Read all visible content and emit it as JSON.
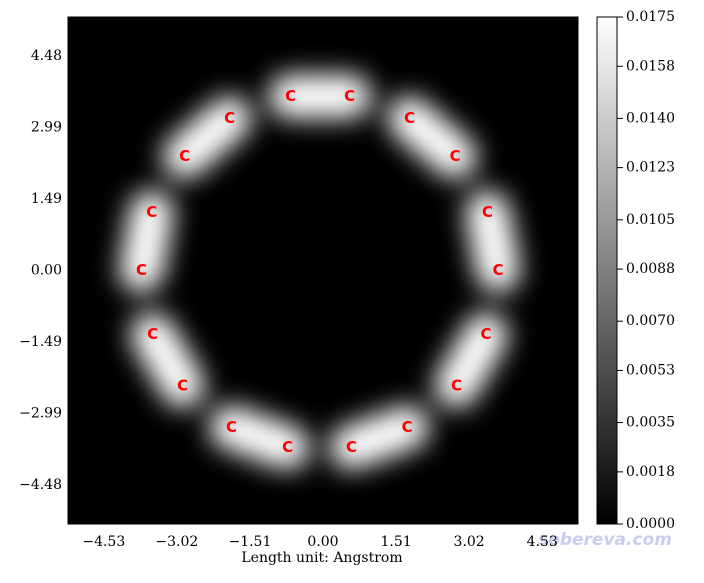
{
  "chart_data": {
    "type": "density-map",
    "xlabel": "Length unit: Angstrom",
    "xlim": [
      -5.27,
      5.27
    ],
    "ylim": [
      -5.3,
      5.3
    ],
    "xticks": [
      {
        "value": -4.53,
        "label": "−4.53"
      },
      {
        "value": -3.02,
        "label": "−3.02"
      },
      {
        "value": -1.51,
        "label": "−1.51"
      },
      {
        "value": 0,
        "label": "0.00"
      },
      {
        "value": 1.51,
        "label": "1.51"
      },
      {
        "value": 3.02,
        "label": "3.02"
      },
      {
        "value": 4.53,
        "label": "4.53"
      }
    ],
    "yticks": [
      {
        "value": -4.48,
        "label": "−4.48"
      },
      {
        "value": -2.99,
        "label": "−2.99"
      },
      {
        "value": -1.49,
        "label": "−1.49"
      },
      {
        "value": 0,
        "label": "0.00"
      },
      {
        "value": 1.49,
        "label": "1.49"
      },
      {
        "value": 2.99,
        "label": "2.99"
      },
      {
        "value": 4.48,
        "label": "4.48"
      }
    ],
    "colorbar_lim": [
      0,
      0.0175
    ],
    "colorbar_ticks": [
      {
        "value": 0,
        "label": "0.0000"
      },
      {
        "value": 0.0018,
        "label": "0.0018"
      },
      {
        "value": 0.0035,
        "label": "0.0035"
      },
      {
        "value": 0.0053,
        "label": "0.0053"
      },
      {
        "value": 0.007,
        "label": "0.0070"
      },
      {
        "value": 0.0088,
        "label": "0.0088"
      },
      {
        "value": 0.0105,
        "label": "0.0105"
      },
      {
        "value": 0.0123,
        "label": "0.0123"
      },
      {
        "value": 0.014,
        "label": "0.0140"
      },
      {
        "value": 0.0158,
        "label": "0.0158"
      },
      {
        "value": 0.0175,
        "label": "0.0175"
      }
    ],
    "atoms": [
      {
        "label": "C",
        "x": -0.67,
        "y": 3.64
      },
      {
        "label": "C",
        "x": 0.55,
        "y": 3.64
      },
      {
        "label": "C",
        "x": 1.79,
        "y": 3.18
      },
      {
        "label": "C",
        "x": 2.73,
        "y": 2.38
      },
      {
        "label": "C",
        "x": 3.4,
        "y": 1.21
      },
      {
        "label": "C",
        "x": 3.62,
        "y": 0.0
      },
      {
        "label": "C",
        "x": 3.37,
        "y": -1.34
      },
      {
        "label": "C",
        "x": 2.76,
        "y": -2.41
      },
      {
        "label": "C",
        "x": 1.74,
        "y": -3.28
      },
      {
        "label": "C",
        "x": 0.59,
        "y": -3.7
      },
      {
        "label": "C",
        "x": -0.73,
        "y": -3.7
      },
      {
        "label": "C",
        "x": -1.89,
        "y": -3.28
      },
      {
        "label": "C",
        "x": -2.9,
        "y": -2.41
      },
      {
        "label": "C",
        "x": -3.52,
        "y": -1.34
      },
      {
        "label": "C",
        "x": -3.75,
        "y": 0.0
      },
      {
        "label": "C",
        "x": -3.54,
        "y": 1.21
      },
      {
        "label": "C",
        "x": -2.86,
        "y": 2.38
      },
      {
        "label": "C",
        "x": -1.93,
        "y": 3.18
      }
    ],
    "watermark": "sobereva.com"
  }
}
